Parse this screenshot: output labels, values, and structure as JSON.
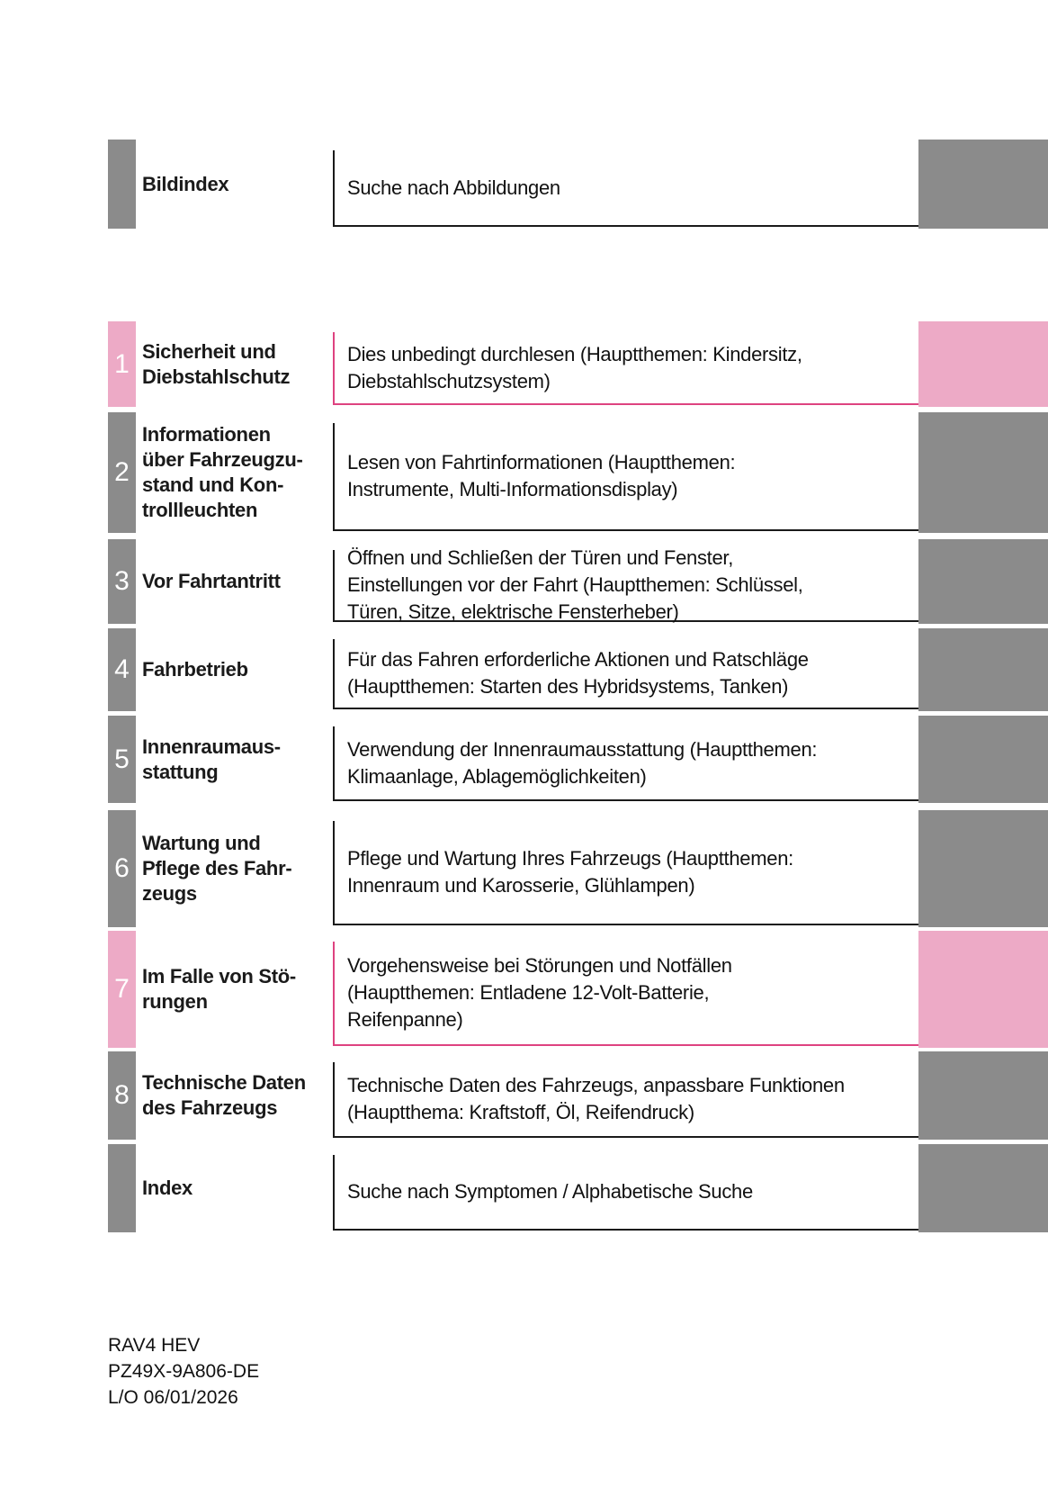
{
  "colors": {
    "gray": "#8b8b8b",
    "pink": "#edaac6",
    "pink_border": "#de4380",
    "dark_border": "#1a1a1a",
    "number_text": "#ffffff"
  },
  "rows": [
    {
      "id": "bildindex",
      "number": "",
      "theme": "gray",
      "title_lines": [
        "Bildindex"
      ],
      "description_lines": [
        "Suche nach Abbildungen"
      ]
    },
    {
      "id": "chapter-1",
      "number": "1",
      "theme": "pink",
      "title_lines": [
        "Sicherheit und",
        "Diebstahlschutz"
      ],
      "description_lines": [
        "Dies unbedingt durchlesen (Hauptthemen: Kindersitz,",
        "Diebstahlschutzsystem)"
      ]
    },
    {
      "id": "chapter-2",
      "number": "2",
      "theme": "gray",
      "title_lines": [
        "Informationen",
        "über Fahrzeugzu-",
        "stand und Kon-",
        "trollleuchten"
      ],
      "description_lines": [
        "Lesen von Fahrtinformationen (Hauptthemen:",
        "Instrumente, Multi-Informationsdisplay)"
      ]
    },
    {
      "id": "chapter-3",
      "number": "3",
      "theme": "gray",
      "title_lines": [
        "Vor Fahrtantritt"
      ],
      "description_lines": [
        "Öffnen und Schließen der Türen und Fenster,",
        "Einstellungen vor der Fahrt (Hauptthemen: Schlüssel,",
        "Türen, Sitze, elektrische Fensterheber)"
      ]
    },
    {
      "id": "chapter-4",
      "number": "4",
      "theme": "gray",
      "title_lines": [
        "Fahrbetrieb"
      ],
      "description_lines": [
        "Für das Fahren erforderliche Aktionen und Ratschläge",
        "(Hauptthemen: Starten des Hybridsystems, Tanken)"
      ]
    },
    {
      "id": "chapter-5",
      "number": "5",
      "theme": "gray",
      "title_lines": [
        "Innenraumaus-",
        "stattung"
      ],
      "description_lines": [
        "Verwendung der Innenraumausstattung (Hauptthemen:",
        "Klimaanlage, Ablagemöglichkeiten)"
      ]
    },
    {
      "id": "chapter-6",
      "number": "6",
      "theme": "gray",
      "title_lines": [
        "Wartung und",
        "Pflege des Fahr-",
        "zeugs"
      ],
      "description_lines": [
        "Pflege und Wartung Ihres Fahrzeugs (Hauptthemen:",
        "Innenraum und Karosserie, Glühlampen)"
      ]
    },
    {
      "id": "chapter-7",
      "number": "7",
      "theme": "pink",
      "title_lines": [
        "Im Falle von Stö-",
        "rungen"
      ],
      "description_lines": [
        "Vorgehensweise bei Störungen und Notfällen",
        "(Hauptthemen: Entladene 12-Volt-Batterie,",
        "Reifenpanne)"
      ]
    },
    {
      "id": "chapter-8",
      "number": "8",
      "theme": "gray",
      "title_lines": [
        "Technische Daten",
        "des Fahrzeugs"
      ],
      "description_lines": [
        "Technische Daten des Fahrzeugs, anpassbare Funktionen",
        "(Hauptthema: Kraftstoff, Öl, Reifendruck)"
      ]
    },
    {
      "id": "index",
      "number": "",
      "theme": "gray",
      "title_lines": [
        "Index"
      ],
      "description_lines": [
        "Suche nach Symptomen / Alphabetische Suche"
      ]
    }
  ],
  "footer": {
    "lines": [
      "RAV4 HEV",
      "PZ49X-9A806-DE",
      "L/O 06/01/2026"
    ]
  }
}
